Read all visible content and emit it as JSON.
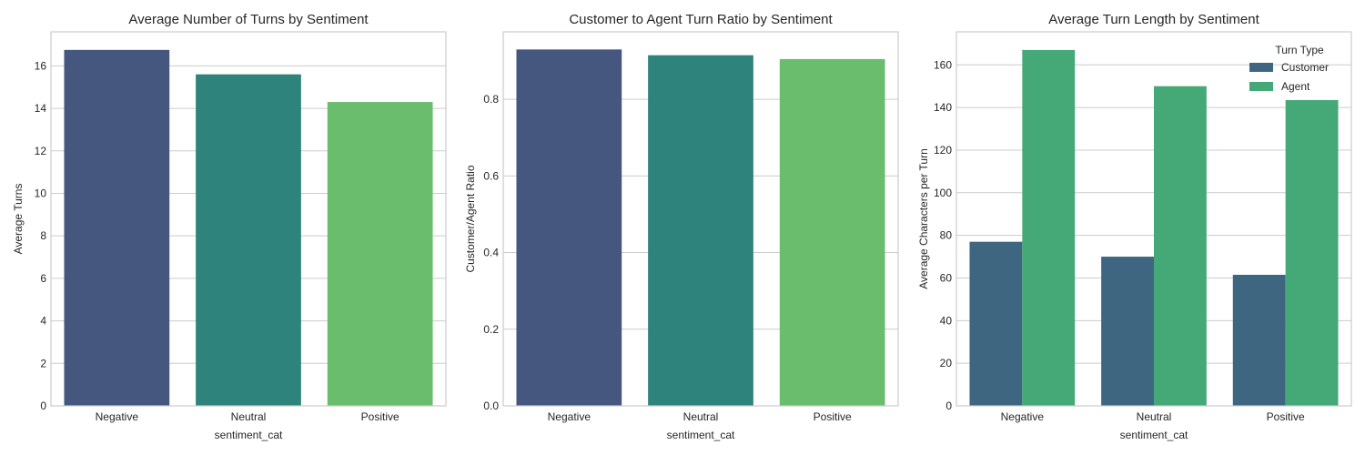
{
  "figure": {
    "background": "#ffffff"
  },
  "chart_data": [
    {
      "type": "bar",
      "title": "Average Number of Turns by Sentiment",
      "xlabel": "sentiment_cat",
      "ylabel": "Average Turns",
      "categories": [
        "Negative",
        "Neutral",
        "Positive"
      ],
      "values": [
        16.75,
        15.6,
        14.3
      ],
      "colors": [
        "#46577f",
        "#2e847d",
        "#6bbd6e"
      ],
      "ylim": [
        0,
        17.6
      ],
      "yticks": [
        0,
        2,
        4,
        6,
        8,
        10,
        12,
        14,
        16
      ],
      "tick_labels": [
        "0",
        "2",
        "4",
        "6",
        "8",
        "10",
        "12",
        "14",
        "16"
      ],
      "grid": true
    },
    {
      "type": "bar",
      "title": "Customer to Agent Turn Ratio by Sentiment",
      "xlabel": "sentiment_cat",
      "ylabel": "Customer/Agent Ratio",
      "categories": [
        "Negative",
        "Neutral",
        "Positive"
      ],
      "values": [
        0.93,
        0.915,
        0.905
      ],
      "colors": [
        "#46577f",
        "#2e847d",
        "#6bbd6e"
      ],
      "ylim": [
        0,
        0.976
      ],
      "yticks": [
        0,
        0.2,
        0.4,
        0.6,
        0.8
      ],
      "tick_labels": [
        "0.0",
        "0.2",
        "0.4",
        "0.6",
        "0.8"
      ],
      "grid": true
    },
    {
      "type": "bar",
      "title": "Average Turn Length by Sentiment",
      "xlabel": "sentiment_cat",
      "ylabel": "Average Characters per Turn",
      "categories": [
        "Negative",
        "Neutral",
        "Positive"
      ],
      "series": [
        {
          "name": "Customer",
          "values": [
            77,
            70,
            61.5
          ],
          "color": "#3e6681"
        },
        {
          "name": "Agent",
          "values": [
            167,
            150,
            143.5
          ],
          "color": "#45a977"
        }
      ],
      "legend": {
        "title": "Turn Type",
        "placement": "upper right"
      },
      "ylim": [
        0,
        175.5
      ],
      "yticks": [
        0,
        20,
        40,
        60,
        80,
        100,
        120,
        140,
        160
      ],
      "tick_labels": [
        "0",
        "20",
        "40",
        "60",
        "80",
        "100",
        "120",
        "140",
        "160"
      ],
      "grid": true
    }
  ]
}
